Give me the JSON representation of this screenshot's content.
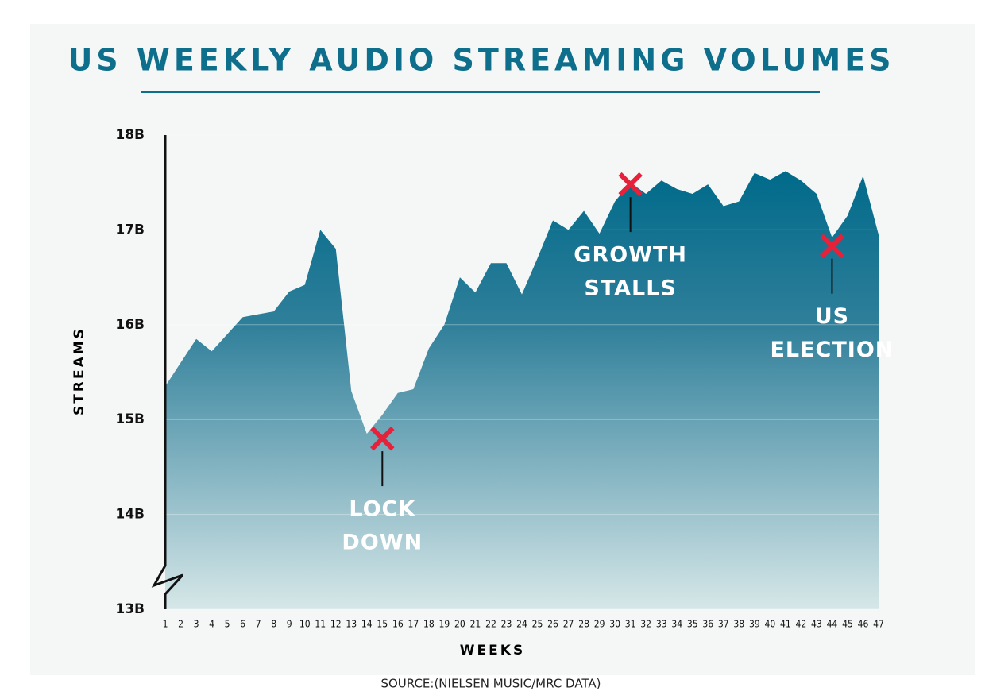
{
  "chart_data": {
    "type": "area",
    "title": "US WEEKLY AUDIO STREAMING VOLUMES",
    "y_label": "STREAMS",
    "x_label": "WEEKS",
    "source": "SOURCE:(NIELSEN MUSIC/MRC DATA)",
    "categories": [
      "1",
      "2",
      "3",
      "4",
      "5",
      "6",
      "7",
      "8",
      "9",
      "10",
      "11",
      "12",
      "13",
      "14",
      "15",
      "16",
      "17",
      "18",
      "19",
      "20",
      "21",
      "22",
      "23",
      "24",
      "25",
      "26",
      "27",
      "28",
      "29",
      "30",
      "31",
      "32",
      "33",
      "34",
      "35",
      "36",
      "37",
      "38",
      "39",
      "40",
      "41",
      "42",
      "43",
      "44",
      "45",
      "46",
      "47"
    ],
    "values": [
      15.35,
      15.6,
      15.85,
      15.72,
      15.9,
      16.08,
      16.11,
      16.14,
      16.35,
      16.42,
      17.0,
      16.8,
      15.3,
      14.85,
      15.05,
      15.28,
      15.32,
      15.75,
      16.0,
      16.5,
      16.34,
      16.65,
      16.65,
      16.32,
      16.7,
      17.1,
      17.0,
      17.2,
      16.96,
      17.3,
      17.5,
      17.38,
      17.52,
      17.43,
      17.38,
      17.48,
      17.25,
      17.3,
      17.6,
      17.53,
      17.62,
      17.52,
      17.38,
      16.92,
      17.15,
      17.57,
      16.95
    ],
    "color": "#0a6f8f",
    "ylim": [
      13,
      18
    ],
    "yticks": [
      {
        "value": 13,
        "label": "13B"
      },
      {
        "value": 14,
        "label": "14B"
      },
      {
        "value": 15,
        "label": "15B"
      },
      {
        "value": 16,
        "label": "16B"
      },
      {
        "value": 17,
        "label": "17B"
      },
      {
        "value": 18,
        "label": "18B"
      }
    ],
    "grid": true,
    "annotations": [
      {
        "lines": [
          "LOCK",
          "DOWN"
        ],
        "week": "15",
        "value": 14.8
      },
      {
        "lines": [
          "GROWTH",
          "STALLS"
        ],
        "week": "31",
        "value": 17.48
      },
      {
        "lines": [
          "US",
          "ELECTION"
        ],
        "week": "44",
        "value": 16.83
      }
    ]
  }
}
